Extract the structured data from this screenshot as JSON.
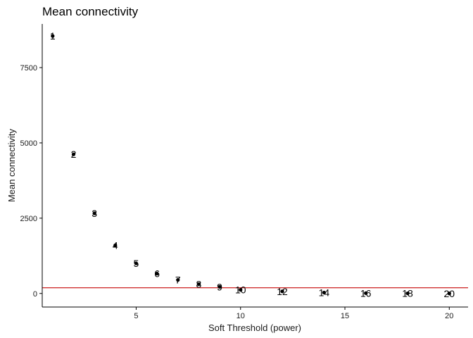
{
  "chart_data": {
    "type": "scatter",
    "title": "Mean connectivity",
    "xlabel": "Soft Threshold (power)",
    "ylabel": "Mean connectivity",
    "xlim": [
      0.5,
      20.9
    ],
    "ylim": [
      -450,
      8950
    ],
    "xticks": [
      "5",
      "10",
      "15",
      "20"
    ],
    "yticks": [
      "0",
      "2500",
      "5000",
      "7500"
    ],
    "grid": false,
    "legend": "none",
    "colors": {
      "points": "#000000",
      "hline": "#cc2222",
      "axis": "#000000"
    },
    "hline": 190,
    "points": [
      {
        "x": 1,
        "y": 8550,
        "label": "1"
      },
      {
        "x": 2,
        "y": 4620,
        "label": "2"
      },
      {
        "x": 3,
        "y": 2660,
        "label": "3"
      },
      {
        "x": 4,
        "y": 1600,
        "label": "4"
      },
      {
        "x": 5,
        "y": 1000,
        "label": "5"
      },
      {
        "x": 6,
        "y": 660,
        "label": "6"
      },
      {
        "x": 7,
        "y": 450,
        "label": "7"
      },
      {
        "x": 8,
        "y": 310,
        "label": "8"
      },
      {
        "x": 9,
        "y": 220,
        "label": "9"
      },
      {
        "x": 10,
        "y": 120,
        "label": "10"
      },
      {
        "x": 12,
        "y": 70,
        "label": "12"
      },
      {
        "x": 14,
        "y": 30,
        "label": "14"
      },
      {
        "x": 16,
        "y": 10,
        "label": "16"
      },
      {
        "x": 18,
        "y": 5,
        "label": "18"
      },
      {
        "x": 20,
        "y": 0,
        "label": "20"
      }
    ]
  }
}
